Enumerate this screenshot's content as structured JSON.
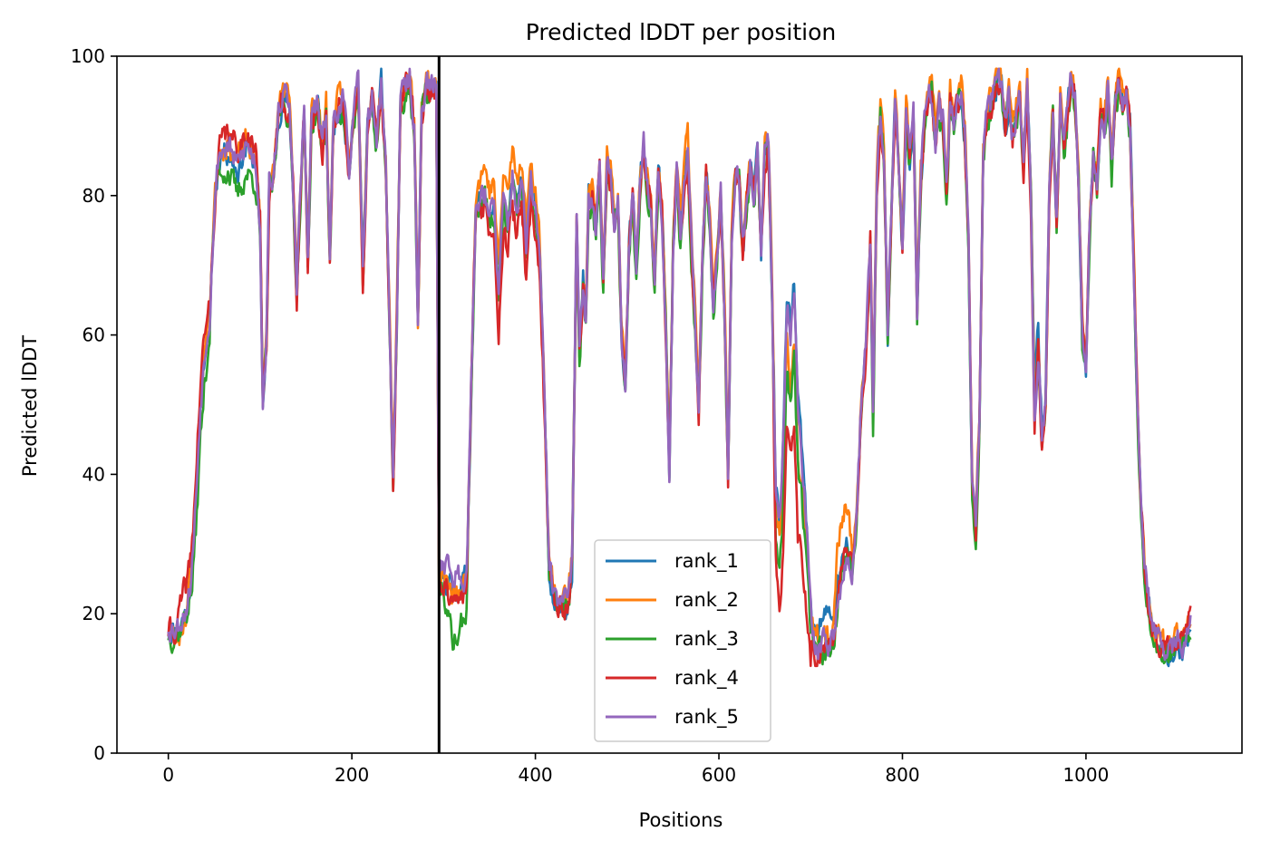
{
  "chart_data": {
    "type": "line",
    "title": "Predicted lDDT per position",
    "xlabel": "Positions",
    "ylabel": "Predicted lDDT",
    "xlim": [
      -56,
      1170
    ],
    "ylim": [
      0,
      100
    ],
    "xticks": [
      0,
      200,
      400,
      600,
      800,
      1000
    ],
    "yticks": [
      0,
      20,
      40,
      60,
      80,
      100
    ],
    "grid": false,
    "legend_position": "lower-center",
    "vline": {
      "x": 295,
      "color": "#000000"
    },
    "series_length": 1115,
    "base_profile": [
      [
        0,
        18
      ],
      [
        10,
        18
      ],
      [
        20,
        21
      ],
      [
        25,
        25
      ],
      [
        30,
        36
      ],
      [
        35,
        50
      ],
      [
        40,
        58
      ],
      [
        45,
        63
      ],
      [
        50,
        78
      ],
      [
        55,
        86
      ],
      [
        65,
        87
      ],
      [
        75,
        84
      ],
      [
        85,
        87
      ],
      [
        95,
        85
      ],
      [
        100,
        76
      ],
      [
        103,
        50
      ],
      [
        107,
        60
      ],
      [
        110,
        82
      ],
      [
        115,
        82
      ],
      [
        120,
        92
      ],
      [
        125,
        95
      ],
      [
        132,
        92
      ],
      [
        137,
        78
      ],
      [
        140,
        66
      ],
      [
        143,
        78
      ],
      [
        148,
        92
      ],
      [
        152,
        70
      ],
      [
        156,
        91
      ],
      [
        163,
        93
      ],
      [
        168,
        86
      ],
      [
        172,
        93
      ],
      [
        176,
        71
      ],
      [
        180,
        91
      ],
      [
        190,
        94
      ],
      [
        197,
        84
      ],
      [
        202,
        91
      ],
      [
        207,
        96
      ],
      [
        212,
        68
      ],
      [
        217,
        90
      ],
      [
        222,
        94
      ],
      [
        227,
        88
      ],
      [
        232,
        96
      ],
      [
        237,
        84
      ],
      [
        242,
        57
      ],
      [
        245,
        39
      ],
      [
        249,
        62
      ],
      [
        253,
        94
      ],
      [
        258,
        95
      ],
      [
        263,
        97
      ],
      [
        268,
        90
      ],
      [
        272,
        61
      ],
      [
        276,
        92
      ],
      [
        281,
        96
      ],
      [
        286,
        95
      ],
      [
        292,
        96
      ],
      [
        295,
        25
      ],
      [
        300,
        25
      ],
      [
        305,
        23
      ],
      [
        310,
        21
      ],
      [
        318,
        22
      ],
      [
        325,
        24
      ],
      [
        330,
        52
      ],
      [
        335,
        78
      ],
      [
        340,
        80
      ],
      [
        345,
        81
      ],
      [
        350,
        77
      ],
      [
        355,
        78
      ],
      [
        360,
        65
      ],
      [
        365,
        79
      ],
      [
        370,
        76
      ],
      [
        375,
        82
      ],
      [
        380,
        78
      ],
      [
        385,
        82
      ],
      [
        390,
        72
      ],
      [
        395,
        82
      ],
      [
        400,
        78
      ],
      [
        405,
        70
      ],
      [
        410,
        50
      ],
      [
        415,
        27
      ],
      [
        420,
        23
      ],
      [
        425,
        21
      ],
      [
        430,
        22
      ],
      [
        435,
        21
      ],
      [
        440,
        27
      ],
      [
        445,
        78
      ],
      [
        448,
        57
      ],
      [
        452,
        68
      ],
      [
        455,
        62
      ],
      [
        458,
        80
      ],
      [
        462,
        80
      ],
      [
        466,
        75
      ],
      [
        470,
        84
      ],
      [
        474,
        68
      ],
      [
        478,
        84
      ],
      [
        482,
        82
      ],
      [
        486,
        76
      ],
      [
        490,
        80
      ],
      [
        494,
        60
      ],
      [
        498,
        53
      ],
      [
        502,
        72
      ],
      [
        506,
        80
      ],
      [
        510,
        70
      ],
      [
        514,
        82
      ],
      [
        518,
        87
      ],
      [
        522,
        82
      ],
      [
        526,
        78
      ],
      [
        530,
        68
      ],
      [
        534,
        84
      ],
      [
        538,
        78
      ],
      [
        542,
        62
      ],
      [
        546,
        40
      ],
      [
        550,
        72
      ],
      [
        554,
        84
      ],
      [
        558,
        74
      ],
      [
        562,
        82
      ],
      [
        566,
        86
      ],
      [
        570,
        72
      ],
      [
        574,
        62
      ],
      [
        578,
        49
      ],
      [
        582,
        70
      ],
      [
        586,
        84
      ],
      [
        590,
        76
      ],
      [
        594,
        64
      ],
      [
        598,
        72
      ],
      [
        602,
        80
      ],
      [
        606,
        64
      ],
      [
        610,
        40
      ],
      [
        614,
        74
      ],
      [
        618,
        84
      ],
      [
        622,
        82
      ],
      [
        626,
        72
      ],
      [
        630,
        78
      ],
      [
        634,
        84
      ],
      [
        638,
        80
      ],
      [
        642,
        86
      ],
      [
        646,
        72
      ],
      [
        650,
        86
      ],
      [
        654,
        87
      ],
      [
        658,
        66
      ],
      [
        662,
        35
      ],
      [
        666,
        30
      ],
      [
        670,
        40
      ],
      [
        674,
        60
      ],
      [
        678,
        55
      ],
      [
        682,
        62
      ],
      [
        686,
        45
      ],
      [
        690,
        40
      ],
      [
        695,
        30
      ],
      [
        700,
        18
      ],
      [
        705,
        15
      ],
      [
        710,
        15
      ],
      [
        715,
        16
      ],
      [
        720,
        16
      ],
      [
        725,
        17
      ],
      [
        730,
        24
      ],
      [
        735,
        28
      ],
      [
        740,
        30
      ],
      [
        745,
        26
      ],
      [
        750,
        34
      ],
      [
        755,
        50
      ],
      [
        760,
        58
      ],
      [
        765,
        74
      ],
      [
        768,
        48
      ],
      [
        772,
        82
      ],
      [
        776,
        92
      ],
      [
        780,
        85
      ],
      [
        784,
        60
      ],
      [
        788,
        78
      ],
      [
        792,
        94
      ],
      [
        796,
        84
      ],
      [
        800,
        72
      ],
      [
        804,
        92
      ],
      [
        808,
        86
      ],
      [
        812,
        92
      ],
      [
        816,
        63
      ],
      [
        820,
        82
      ],
      [
        824,
        90
      ],
      [
        828,
        94
      ],
      [
        832,
        95
      ],
      [
        836,
        88
      ],
      [
        840,
        93
      ],
      [
        844,
        91
      ],
      [
        848,
        80
      ],
      [
        852,
        94
      ],
      [
        856,
        90
      ],
      [
        860,
        93
      ],
      [
        864,
        95
      ],
      [
        868,
        89
      ],
      [
        872,
        74
      ],
      [
        876,
        38
      ],
      [
        880,
        32
      ],
      [
        884,
        48
      ],
      [
        888,
        86
      ],
      [
        892,
        91
      ],
      [
        896,
        93
      ],
      [
        900,
        96
      ],
      [
        904,
        97
      ],
      [
        908,
        95
      ],
      [
        912,
        90
      ],
      [
        916,
        94
      ],
      [
        920,
        88
      ],
      [
        924,
        92
      ],
      [
        928,
        94
      ],
      [
        932,
        84
      ],
      [
        936,
        96
      ],
      [
        940,
        80
      ],
      [
        944,
        48
      ],
      [
        948,
        58
      ],
      [
        952,
        44
      ],
      [
        956,
        50
      ],
      [
        960,
        80
      ],
      [
        964,
        92
      ],
      [
        968,
        76
      ],
      [
        972,
        94
      ],
      [
        976,
        88
      ],
      [
        980,
        92
      ],
      [
        984,
        97
      ],
      [
        988,
        94
      ],
      [
        992,
        82
      ],
      [
        996,
        60
      ],
      [
        1000,
        56
      ],
      [
        1004,
        76
      ],
      [
        1008,
        86
      ],
      [
        1012,
        82
      ],
      [
        1016,
        92
      ],
      [
        1020,
        90
      ],
      [
        1024,
        96
      ],
      [
        1028,
        84
      ],
      [
        1032,
        94
      ],
      [
        1036,
        96
      ],
      [
        1040,
        94
      ],
      [
        1044,
        95
      ],
      [
        1048,
        90
      ],
      [
        1052,
        70
      ],
      [
        1056,
        50
      ],
      [
        1060,
        36
      ],
      [
        1064,
        26
      ],
      [
        1068,
        22
      ],
      [
        1072,
        18
      ],
      [
        1078,
        17
      ],
      [
        1085,
        15
      ],
      [
        1090,
        15
      ],
      [
        1095,
        15
      ],
      [
        1100,
        16
      ],
      [
        1105,
        15
      ],
      [
        1110,
        18
      ],
      [
        1115,
        19
      ]
    ],
    "series": [
      {
        "name": "rank_1",
        "color": "#1f77b4",
        "offset": -0.3,
        "seed": 11,
        "patches": [
          [
            300,
            326,
            2.5
          ],
          [
            660,
            700,
            6
          ],
          [
            700,
            730,
            4
          ],
          [
            940,
            960,
            3
          ]
        ]
      },
      {
        "name": "rank_2",
        "color": "#ff7f0e",
        "offset": 0.8,
        "seed": 23,
        "patches": [
          [
            0,
            20,
            -2.5
          ],
          [
            330,
            410,
            3.5
          ],
          [
            670,
            690,
            -4
          ],
          [
            725,
            745,
            6
          ],
          [
            555,
            575,
            2.5
          ]
        ]
      },
      {
        "name": "rank_3",
        "color": "#2ca02c",
        "offset": -1.0,
        "seed": 37,
        "patches": [
          [
            25,
            45,
            -4
          ],
          [
            55,
            100,
            -3
          ],
          [
            300,
            326,
            -4
          ],
          [
            660,
            695,
            -4
          ]
        ]
      },
      {
        "name": "rank_4",
        "color": "#d62728",
        "offset": -0.4,
        "seed": 41,
        "patches": [
          [
            10,
            45,
            4
          ],
          [
            55,
            100,
            3
          ],
          [
            340,
            410,
            -3.5
          ],
          [
            660,
            700,
            -14
          ],
          [
            700,
            730,
            -1.5
          ],
          [
            1100,
            1115,
            2
          ]
        ]
      },
      {
        "name": "rank_5",
        "color": "#9467bd",
        "offset": 0.2,
        "seed": 53,
        "patches": [
          [
            295,
            326,
            4
          ],
          [
            660,
            700,
            5
          ],
          [
            725,
            745,
            -3
          ]
        ]
      }
    ]
  }
}
